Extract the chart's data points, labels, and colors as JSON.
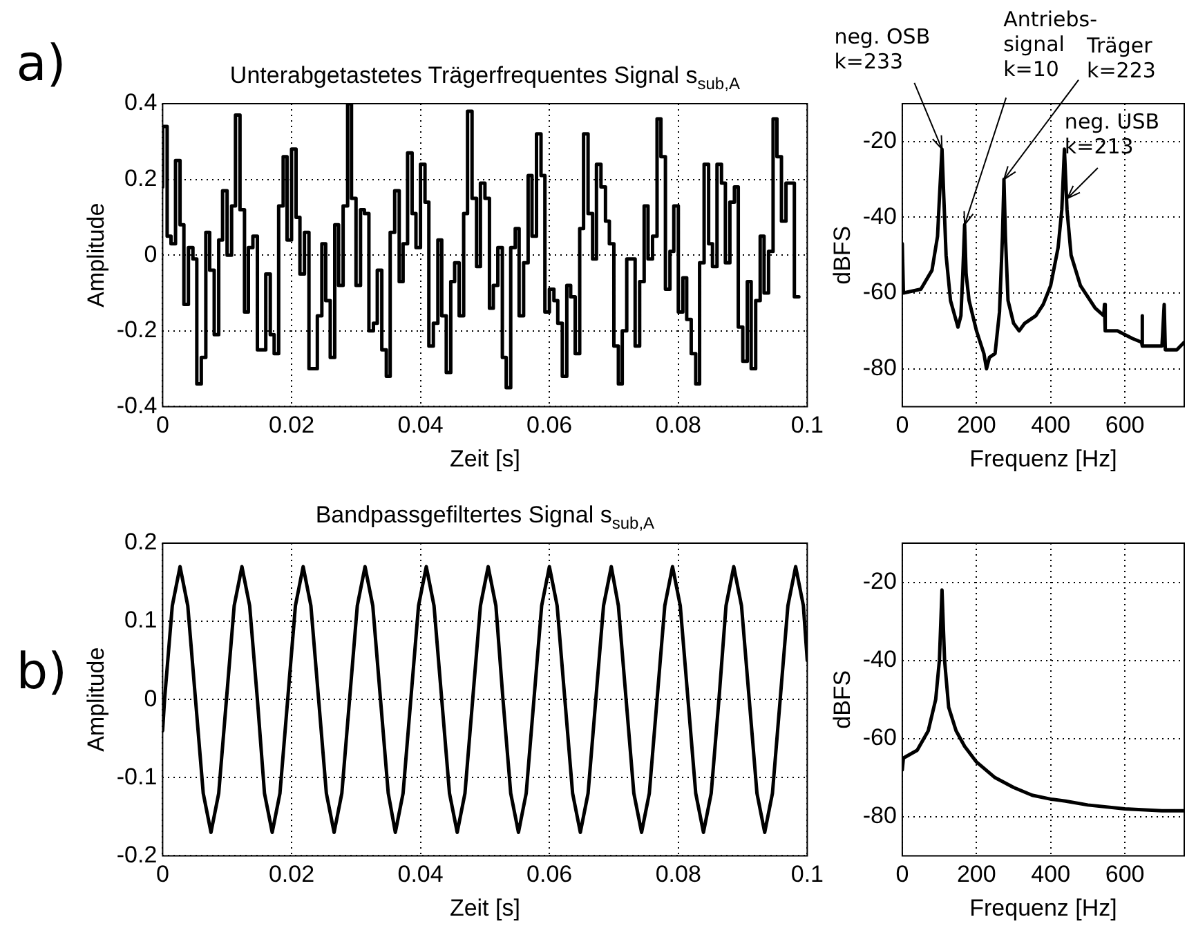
{
  "chart_data": [
    {
      "type": "step",
      "title": "Unterabgetastetes Trägerfrequentes Signal s$_{sub,A}$",
      "xlabel": "Zeit [s]",
      "ylabel": "Amplitude",
      "annotations": [
        "a)"
      ],
      "x": [
        0,
        0.0007,
        0.0013,
        0.002,
        0.0027,
        0.0033,
        0.004,
        0.0047,
        0.0053,
        0.006,
        0.0067,
        0.0073,
        0.008,
        0.0087,
        0.0093,
        0.01,
        0.0107,
        0.0113,
        0.012,
        0.0127,
        0.0133,
        0.014,
        0.0147,
        0.0153,
        0.016,
        0.0167,
        0.0173,
        0.018,
        0.0187,
        0.0193,
        0.02,
        0.0207,
        0.0213,
        0.022,
        0.0227,
        0.0233,
        0.024,
        0.0247,
        0.0253,
        0.026,
        0.0267,
        0.0273,
        0.028,
        0.0287,
        0.0293,
        0.03,
        0.0307,
        0.0313,
        0.032,
        0.0327,
        0.0333,
        0.034,
        0.0347,
        0.0353,
        0.036,
        0.0367,
        0.0373,
        0.038,
        0.0387,
        0.0393,
        0.04,
        0.0407,
        0.0413,
        0.042,
        0.0427,
        0.0433,
        0.044,
        0.0447,
        0.0453,
        0.046,
        0.0467,
        0.0473,
        0.048,
        0.0487,
        0.0493,
        0.05,
        0.0507,
        0.0513,
        0.052,
        0.0527,
        0.0533,
        0.054,
        0.0547,
        0.0553,
        0.056,
        0.0567,
        0.0573,
        0.058,
        0.0587,
        0.0593,
        0.06,
        0.0607,
        0.0613,
        0.062,
        0.0627,
        0.0633,
        0.064,
        0.0647,
        0.0653,
        0.066,
        0.0667,
        0.0673,
        0.068,
        0.0687,
        0.0693,
        0.07,
        0.0707,
        0.0713,
        0.072,
        0.0727,
        0.0733,
        0.074,
        0.0747,
        0.0753,
        0.076,
        0.0767,
        0.0773,
        0.078,
        0.0787,
        0.0793,
        0.08,
        0.0807,
        0.0813,
        0.082,
        0.0827,
        0.0833,
        0.084,
        0.0847,
        0.0853,
        0.086,
        0.0867,
        0.0873,
        0.088,
        0.0887,
        0.0893,
        0.09,
        0.0907,
        0.0913,
        0.092,
        0.0927,
        0.0933,
        0.094,
        0.0947,
        0.0953,
        0.096,
        0.0967,
        0.0973,
        0.098,
        0.0987
      ],
      "series": [
        {
          "color": "#000000",
          "values": [
            0.18,
            0.34,
            0.05,
            0.03,
            0.25,
            0.08,
            -0.13,
            0.02,
            -0.01,
            -0.34,
            -0.27,
            0.06,
            -0.04,
            -0.21,
            0.04,
            0.17,
            0,
            0.13,
            0.37,
            0.12,
            -0.15,
            0.02,
            0.05,
            -0.25,
            -0.25,
            -0.05,
            -0.21,
            -0.26,
            0.13,
            0.26,
            0.04,
            0.28,
            0.1,
            -0.05,
            0.06,
            -0.3,
            -0.3,
            -0.16,
            0.03,
            -0.12,
            -0.27,
            0.08,
            -0.08,
            0.13,
            0.4,
            0.15,
            -0.08,
            0.12,
            0.11,
            -0.2,
            -0.18,
            -0.04,
            -0.25,
            -0.32,
            0.06,
            0.17,
            -0.07,
            0.03,
            0.27,
            0.11,
            0.02,
            0.24,
            0.14,
            -0.24,
            -0.18,
            0.04,
            -0.16,
            -0.31,
            -0.07,
            -0.02,
            -0.16,
            0.11,
            0.38,
            0.15,
            -0.03,
            0.19,
            0.15,
            -0.14,
            -0.08,
            0.02,
            -0.27,
            -0.35,
            0.02,
            0.07,
            -0.16,
            -0.02,
            0.21,
            0.05,
            0.32,
            0.21,
            -0.15,
            -0.09,
            -0.12,
            -0.18,
            -0.32,
            -0.08,
            -0.11,
            -0.26,
            0.07,
            0.32,
            0.11,
            -0.01,
            0.24,
            0.18,
            0.09,
            0.03,
            -0.24,
            -0.34,
            -0.2,
            -0.01,
            -0.01,
            -0.24,
            -0.07,
            0.13,
            -0.01,
            0.05,
            0.36,
            0.26,
            -0.09,
            0.01,
            0.13,
            -0.15,
            -0.06,
            -0.17,
            -0.26,
            -0.34,
            -0.02,
            0.24,
            0.03,
            -0.03,
            0.24,
            0.19,
            -0.02,
            0.14,
            0.18,
            -0.19,
            -0.28,
            -0.07,
            -0.3,
            -0.12,
            0.05,
            -0.1,
            0.01,
            0.36,
            0.26,
            0.09,
            0.19,
            0.19,
            -0.11
          ]
        }
      ],
      "xlim": [
        0,
        0.1
      ],
      "xticks": [
        0,
        0.02,
        0.04,
        0.06,
        0.08,
        0.1
      ],
      "ylim": [
        -0.4,
        0.4
      ],
      "yticks": [
        -0.4,
        -0.2,
        0,
        0.2,
        0.4
      ],
      "grid": true,
      "legend": false
    },
    {
      "type": "line",
      "xlabel": "Frequenz [Hz]",
      "ylabel": "dBFS",
      "annotations": [
        {
          "text": "neg. OSB\nk=233",
          "x": 107,
          "y": -22
        },
        {
          "text": "Antriebs-\nsignal\nk=10",
          "x": 168,
          "y": -42
        },
        {
          "text": "Träger\nk=223",
          "x": 274,
          "y": -30
        },
        {
          "text": "neg. USB\nk=213",
          "x": 445,
          "y": -35
        }
      ],
      "series": [
        {
          "color": "#000000",
          "x": [
            0,
            3,
            50,
            80,
            95,
            100,
            107,
            112,
            118,
            130,
            150,
            158,
            163,
            168,
            172,
            180,
            200,
            220,
            227,
            235,
            250,
            262,
            270,
            274,
            278,
            285,
            300,
            315,
            330,
            360,
            380,
            400,
            420,
            430,
            437,
            444,
            455,
            480,
            520,
            543,
            545,
            547,
            580,
            620,
            645,
            646,
            648,
            700,
            706,
            709,
            740,
            760
          ],
          "values": [
            -47,
            -60,
            -59,
            -54,
            -45,
            -35,
            -22,
            -35,
            -50,
            -62,
            -69,
            -66,
            -55,
            -42,
            -55,
            -62,
            -70,
            -76,
            -80,
            -77,
            -76,
            -65,
            -45,
            -30,
            -45,
            -62,
            -68,
            -70,
            -68,
            -66,
            -63,
            -58,
            -48,
            -38,
            -22,
            -38,
            -50,
            -58,
            -64,
            -66,
            -63,
            -70,
            -70,
            -72,
            -73,
            -66,
            -74,
            -74,
            -63,
            -75,
            -75,
            -73
          ]
        }
      ],
      "xlim": [
        0,
        760
      ],
      "xticks": [
        0,
        200,
        400,
        600
      ],
      "ylim": [
        -90,
        -10
      ],
      "yticks": [
        -80,
        -60,
        -40,
        -20
      ],
      "grid": true,
      "legend": false
    },
    {
      "type": "line",
      "title": "Bandpassgefiltertes Signal s$_{sub,A}$",
      "xlabel": "Zeit [s]",
      "ylabel": "Amplitude",
      "annotations": [
        "b)"
      ],
      "x": [
        0,
        0.0003,
        0.0015,
        0.0027,
        0.0039,
        0.0051,
        0.0063,
        0.0075,
        0.0087,
        0.0099,
        0.0111,
        0.0123,
        0.0135,
        0.0147,
        0.0158,
        0.017,
        0.0182,
        0.0194,
        0.0206,
        0.0218,
        0.023,
        0.0242,
        0.0254,
        0.0266,
        0.0278,
        0.029,
        0.0302,
        0.0314,
        0.0326,
        0.0338,
        0.035,
        0.0361,
        0.0373,
        0.0385,
        0.0397,
        0.0409,
        0.0421,
        0.0433,
        0.0445,
        0.0457,
        0.0469,
        0.0481,
        0.0493,
        0.0505,
        0.0517,
        0.0528,
        0.054,
        0.0552,
        0.0564,
        0.0576,
        0.0588,
        0.06,
        0.0612,
        0.0624,
        0.0636,
        0.0648,
        0.066,
        0.0672,
        0.0684,
        0.0696,
        0.0707,
        0.0719,
        0.0731,
        0.0743,
        0.0755,
        0.0767,
        0.0779,
        0.0791,
        0.0803,
        0.0815,
        0.0827,
        0.0839,
        0.0851,
        0.0863,
        0.0874,
        0.0886,
        0.0898,
        0.091,
        0.0922,
        0.0934,
        0.0946,
        0.0958,
        0.097,
        0.0982,
        0.0994,
        0.1
      ],
      "series": [
        {
          "color": "#000000",
          "values": [
            -0.04,
            0,
            0.12,
            0.17,
            0.12,
            0,
            -0.12,
            -0.17,
            -0.12,
            0,
            0.12,
            0.17,
            0.12,
            0,
            -0.12,
            -0.17,
            -0.12,
            0,
            0.12,
            0.17,
            0.12,
            0,
            -0.12,
            -0.17,
            -0.12,
            0,
            0.12,
            0.17,
            0.12,
            0,
            -0.12,
            -0.17,
            -0.12,
            0,
            0.12,
            0.17,
            0.12,
            0,
            -0.12,
            -0.17,
            -0.12,
            0,
            0.12,
            0.17,
            0.12,
            0,
            -0.12,
            -0.17,
            -0.12,
            0,
            0.12,
            0.17,
            0.12,
            0,
            -0.12,
            -0.17,
            -0.12,
            0,
            0.12,
            0.17,
            0.12,
            0,
            -0.12,
            -0.17,
            -0.12,
            0,
            0.12,
            0.17,
            0.12,
            0,
            -0.12,
            -0.17,
            -0.12,
            0,
            0.12,
            0.17,
            0.12,
            0,
            -0.12,
            -0.17,
            -0.12,
            0,
            0.12,
            0.17,
            0.12,
            0.05
          ]
        }
      ],
      "xlim": [
        0,
        0.1
      ],
      "xticks": [
        0,
        0.02,
        0.04,
        0.06,
        0.08,
        0.1
      ],
      "ylim": [
        -0.2,
        0.2
      ],
      "yticks": [
        -0.2,
        -0.1,
        0,
        0.1,
        0.2
      ],
      "grid": true,
      "legend": false
    },
    {
      "type": "line",
      "xlabel": "Frequenz [Hz]",
      "ylabel": "dBFS",
      "series": [
        {
          "color": "#000000",
          "x": [
            0,
            3,
            40,
            70,
            90,
            100,
            107,
            114,
            125,
            145,
            168,
            200,
            250,
            300,
            350,
            400,
            440,
            500,
            600,
            700,
            760
          ],
          "values": [
            -68,
            -65,
            -63,
            -58,
            -50,
            -40,
            -22,
            -40,
            -52,
            -58,
            -62,
            -66,
            -70,
            -72.5,
            -74.5,
            -75.5,
            -76,
            -77,
            -78,
            -78.5,
            -78.5
          ]
        }
      ],
      "xlim": [
        0,
        760
      ],
      "xticks": [
        0,
        200,
        400,
        600
      ],
      "ylim": [
        -90,
        -10
      ],
      "yticks": [
        -80,
        -60,
        -40,
        -20
      ],
      "grid": true,
      "legend": false
    }
  ]
}
